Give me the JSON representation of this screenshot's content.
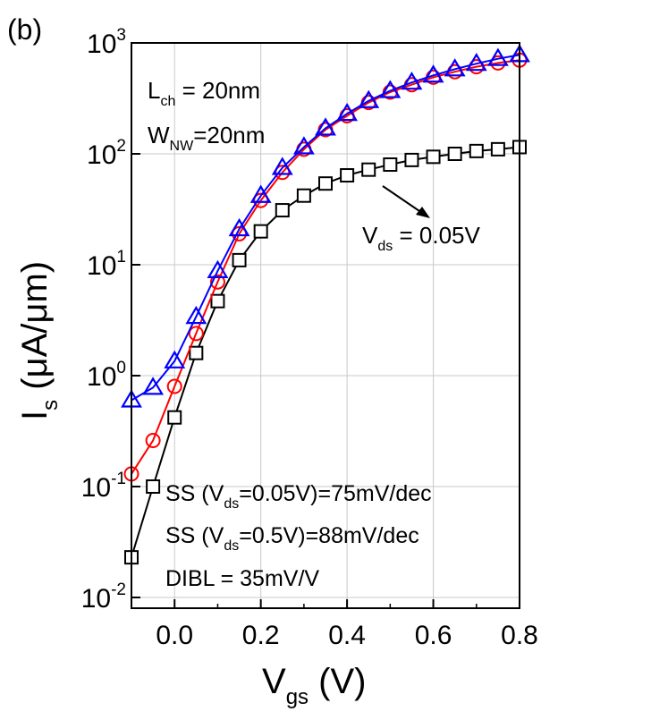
{
  "panel_label": "(b)",
  "chart_data": {
    "type": "line",
    "xlabel": {
      "main": "V",
      "sub": "gs",
      "unit": " (V)"
    },
    "ylabel": {
      "main": "I",
      "sub": "s",
      "unit": " (μA/μm)"
    },
    "xlim": [
      -0.1,
      0.8
    ],
    "ylim": [
      0.008,
      1000
    ],
    "y_scale": "log",
    "grid": true,
    "x_ticks": [
      "0.0",
      "0.2",
      "0.4",
      "0.6",
      "0.8"
    ],
    "y_ticks": [
      {
        "base": "10",
        "exp": "-2"
      },
      {
        "base": "10",
        "exp": "-1"
      },
      {
        "base": "10",
        "exp": "0"
      },
      {
        "base": "10",
        "exp": "1"
      },
      {
        "base": "10",
        "exp": "2"
      },
      {
        "base": "10",
        "exp": "3"
      }
    ],
    "series": [
      {
        "marker": "square",
        "color": "#000000",
        "x": [
          -0.1,
          -0.05,
          0.0,
          0.05,
          0.1,
          0.15,
          0.2,
          0.25,
          0.3,
          0.35,
          0.4,
          0.45,
          0.5,
          0.55,
          0.6,
          0.65,
          0.7,
          0.75,
          0.8
        ],
        "y": [
          0.023,
          0.1,
          0.42,
          1.6,
          4.7,
          11,
          20,
          31,
          42,
          54,
          64,
          72,
          80,
          88,
          94,
          100,
          106,
          110,
          115
        ]
      },
      {
        "marker": "circle",
        "color": "#ff0000",
        "x": [
          -0.1,
          -0.05,
          0.0,
          0.05,
          0.1,
          0.15,
          0.2,
          0.25,
          0.3,
          0.35,
          0.4,
          0.45,
          0.5,
          0.55,
          0.6,
          0.65,
          0.7,
          0.75,
          0.8
        ],
        "y": [
          0.13,
          0.26,
          0.8,
          2.4,
          7.0,
          19,
          38,
          68,
          110,
          165,
          220,
          290,
          360,
          420,
          490,
          550,
          610,
          660,
          700
        ]
      },
      {
        "marker": "triangle",
        "color": "#0000ff",
        "x": [
          -0.1,
          -0.05,
          0.0,
          0.05,
          0.1,
          0.15,
          0.2,
          0.25,
          0.3,
          0.35,
          0.4,
          0.45,
          0.5,
          0.55,
          0.6,
          0.65,
          0.7,
          0.75,
          0.8
        ],
        "y": [
          0.6,
          0.78,
          1.35,
          3.4,
          8.8,
          21,
          42,
          75,
          115,
          170,
          230,
          300,
          370,
          440,
          510,
          580,
          650,
          720,
          780
        ]
      }
    ],
    "annotations": {
      "lch": {
        "main": "L",
        "sub": "ch",
        "rest": " = 20nm"
      },
      "wnw": {
        "main": "W",
        "sub": "NW",
        "rest": "=20nm"
      },
      "vds": {
        "main": "V",
        "sub": "ds",
        "rest": " = 0.05V"
      },
      "ss1": {
        "pre": "SS (",
        "main": "V",
        "sub": "ds",
        "rest": "=0.05V)=75mV/dec"
      },
      "ss2": {
        "pre": "SS (",
        "main": "V",
        "sub": "ds",
        "rest": "=0.5V)=88mV/dec"
      },
      "dibl": {
        "text": "DIBL = 35mV/V"
      }
    }
  }
}
